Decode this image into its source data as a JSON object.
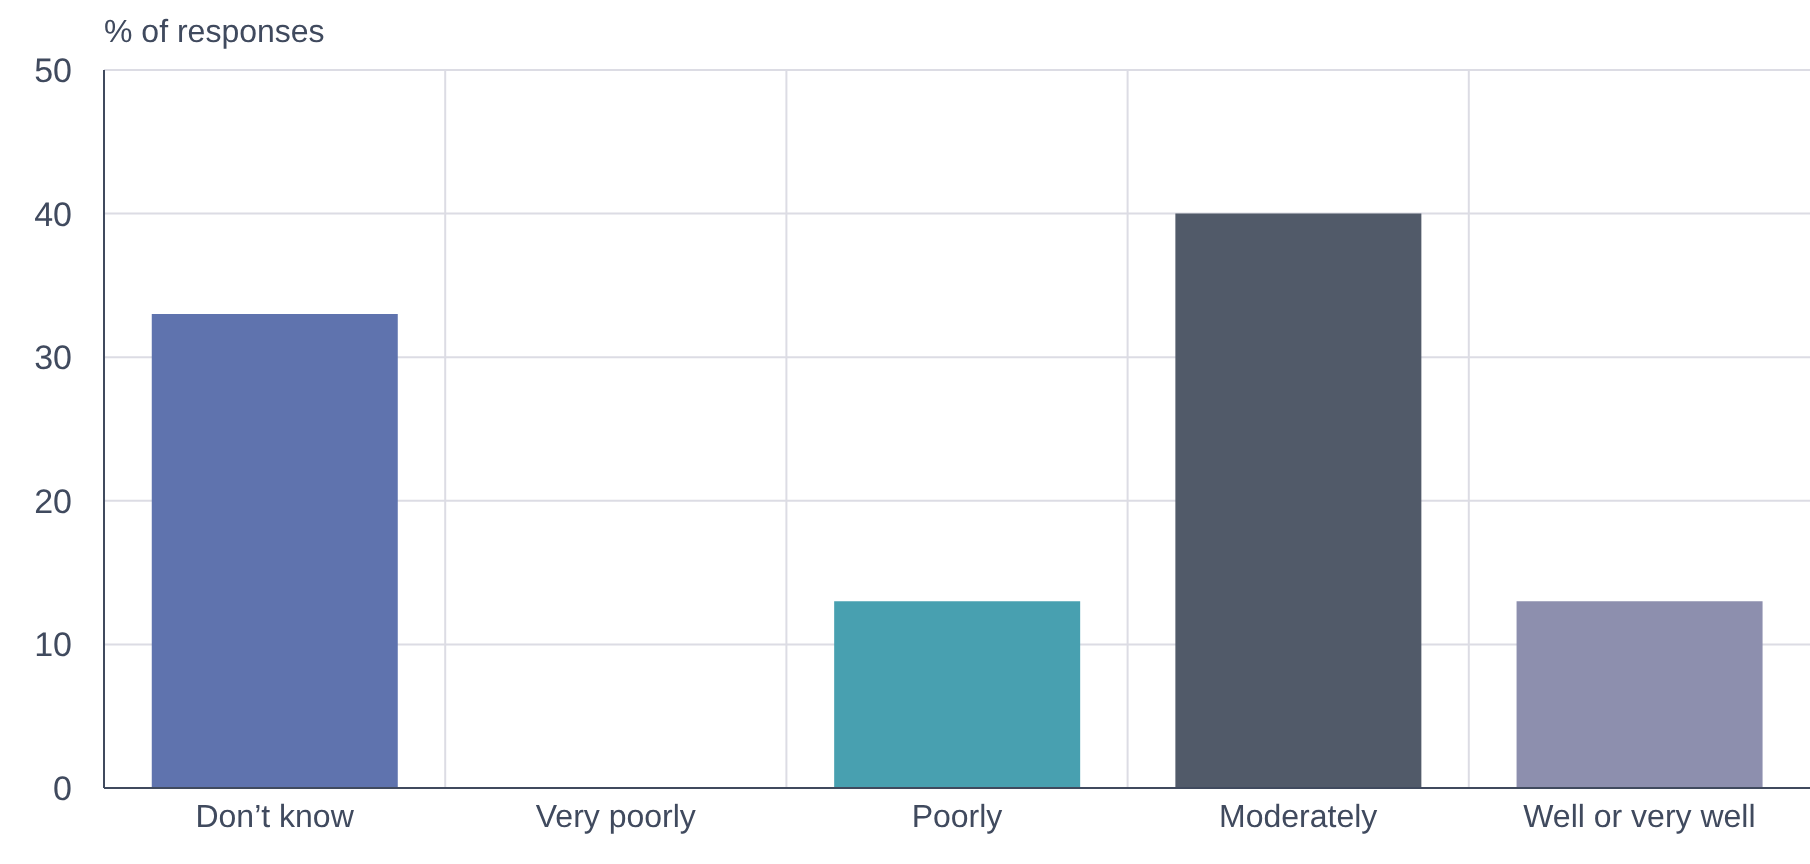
{
  "chart_data": {
    "type": "bar",
    "ylabel": "% of responses",
    "categories": [
      "Don’t know",
      "Very poorly",
      "Poorly",
      "Moderately",
      "Well or very well"
    ],
    "values": [
      33,
      0,
      13,
      40,
      13
    ],
    "colors": [
      "#5f73ae",
      "#6b7c93",
      "#48a0b0",
      "#515a69",
      "#8d8fae"
    ],
    "ylim": [
      0,
      50
    ],
    "yticks": [
      0,
      10,
      20,
      30,
      40,
      50
    ],
    "grid": true
  }
}
